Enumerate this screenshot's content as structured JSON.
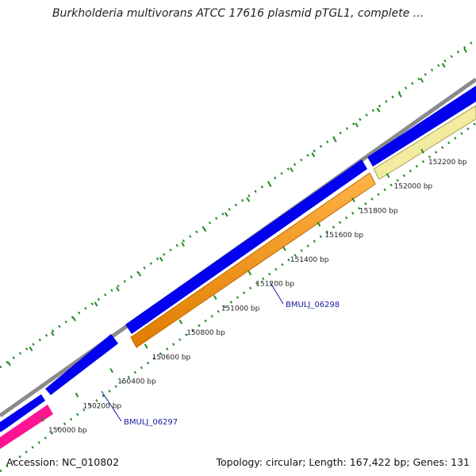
{
  "title": "Burkholderia multivorans ATCC 17616 plasmid pTGL1, complete ...",
  "accession": "Accession: NC_010802",
  "summary": "Topology: circular; Length: 167,422 bp; Genes: 131",
  "colors": {
    "backbone": "#888888",
    "forward_cds": "#0000ee",
    "reverse_cds": "#ff8c00",
    "pink_feature": "#ff1493",
    "pale_feature": "#f0e68c",
    "ticks": "#228b22",
    "gene_label": "#1a1aa0"
  },
  "tick_labels": [
    {
      "bp": 150000,
      "label": "150000 bp"
    },
    {
      "bp": 150200,
      "label": "150200 bp"
    },
    {
      "bp": 150400,
      "label": "150400 bp"
    },
    {
      "bp": 150600,
      "label": "150600 bp"
    },
    {
      "bp": 150800,
      "label": "150800 bp"
    },
    {
      "bp": 151000,
      "label": "151000 bp"
    },
    {
      "bp": 151200,
      "label": "151200 bp"
    },
    {
      "bp": 151400,
      "label": "151400 bp"
    },
    {
      "bp": 151600,
      "label": "151600 bp"
    },
    {
      "bp": 151800,
      "label": "151800 bp"
    },
    {
      "bp": 152000,
      "label": "152000 bp"
    },
    {
      "bp": 152200,
      "label": "152200 bp"
    }
  ],
  "genes": [
    {
      "label": "BMULJ_06297",
      "tick_bp": 150200
    },
    {
      "label": "BMULJ_06298",
      "tick_bp": 151200
    }
  ]
}
